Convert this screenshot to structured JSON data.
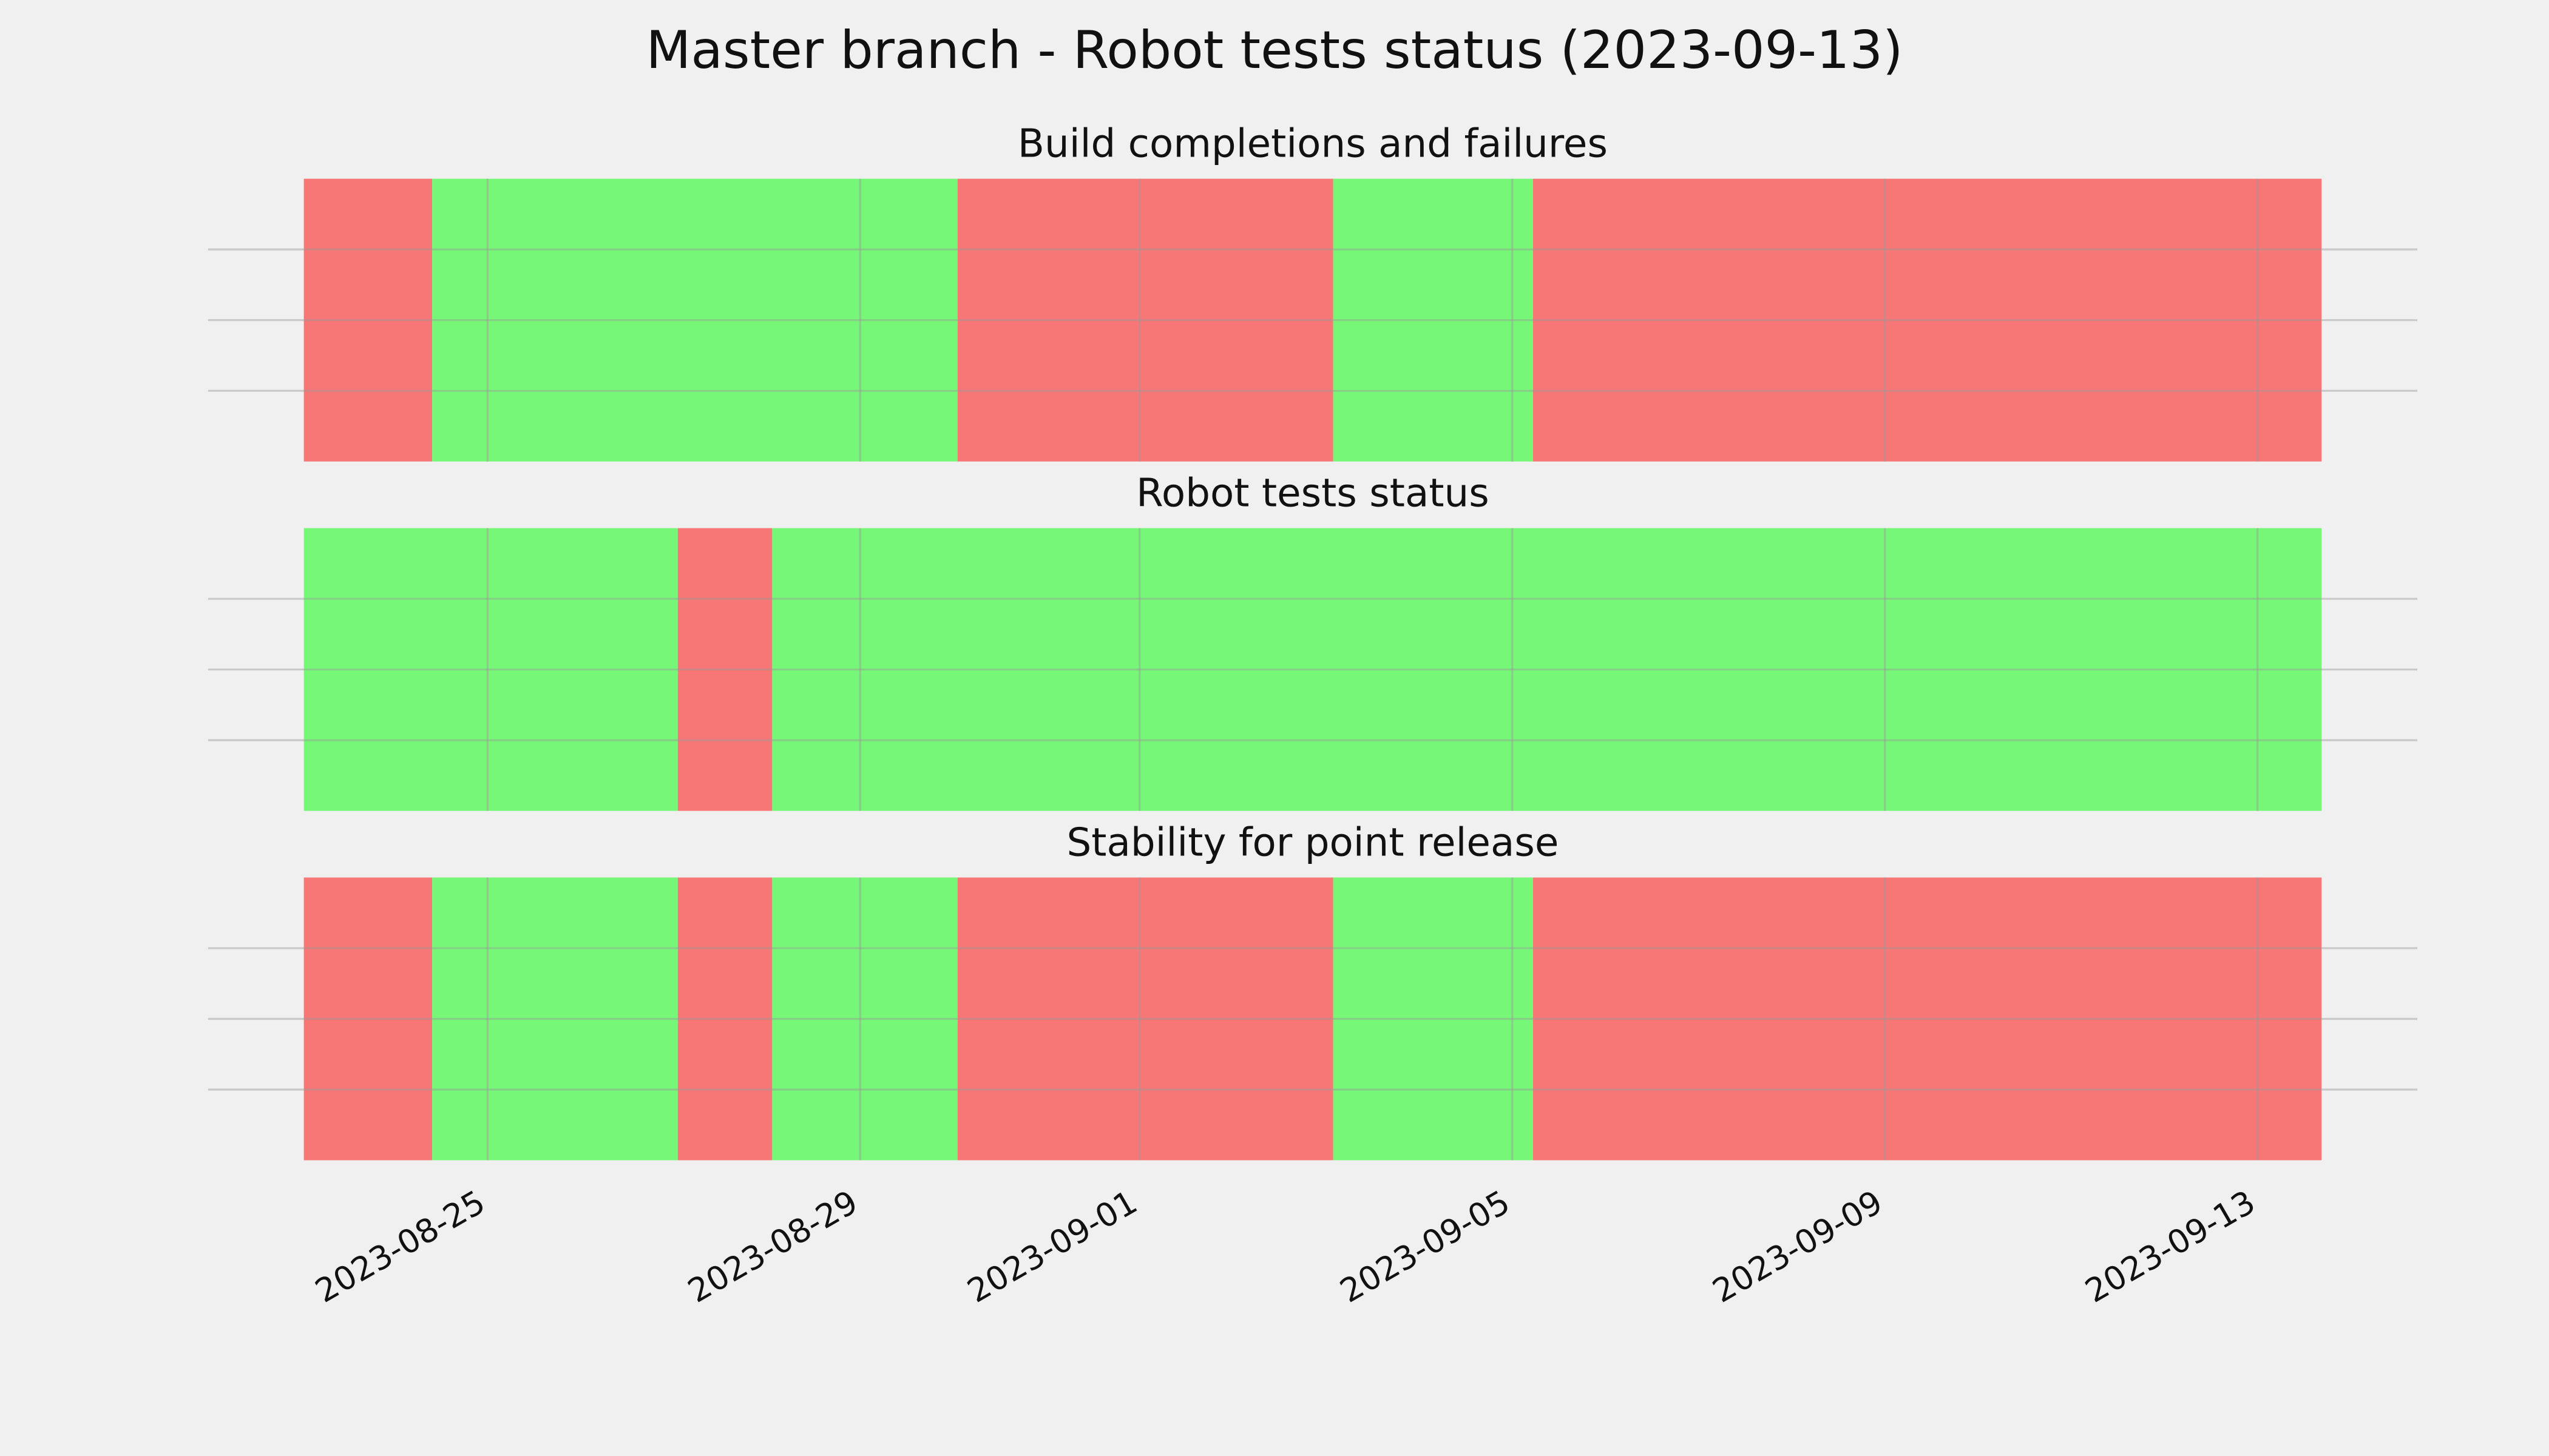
{
  "title": "Master branch - Robot tests status (2023-09-13)",
  "chart_data": [
    {
      "type": "timeline",
      "title": "Build completions and failures",
      "x": [
        "2023-08-23T00:40",
        "2023-08-24T09:45",
        "2023-08-30T01:05",
        "2023-09-03T01:50",
        "2023-09-05T05:20",
        "2023-09-13T16:30"
      ],
      "colors": [
        "#f77777",
        "#77f777",
        "#f77777",
        "#77f777",
        "#f77777"
      ],
      "ylim": [
        0,
        1
      ],
      "yticks": [
        0.25,
        0.5,
        0.75
      ],
      "grid": true
    },
    {
      "type": "timeline",
      "title": "Robot tests status",
      "x": [
        "2023-08-23T00:40",
        "2023-08-27T01:00",
        "2023-08-28T01:20",
        "2023-09-13T16:30"
      ],
      "colors": [
        "#77f777",
        "#f77777",
        "#77f777"
      ],
      "ylim": [
        0,
        1
      ],
      "yticks": [
        0.25,
        0.5,
        0.75
      ],
      "grid": true
    },
    {
      "type": "timeline",
      "title": "Stability for point release",
      "x": [
        "2023-08-23T00:40",
        "2023-08-24T09:45",
        "2023-08-27T01:00",
        "2023-08-28T01:20",
        "2023-08-30T01:05",
        "2023-09-03T01:50",
        "2023-09-05T05:20",
        "2023-09-13T16:30"
      ],
      "colors": [
        "#f77777",
        "#77f777",
        "#f77777",
        "#77f777",
        "#f77777",
        "#77f777",
        "#f77777"
      ],
      "ylim": [
        0,
        1
      ],
      "yticks": [
        0.25,
        0.5,
        0.75
      ],
      "grid": true,
      "xlim": [
        "2023-08-22T00:00",
        "2023-09-14T17:10"
      ],
      "xticks": [
        "2023-08-25",
        "2023-08-29",
        "2023-09-01",
        "2023-09-05",
        "2023-09-09",
        "2023-09-13"
      ]
    }
  ]
}
